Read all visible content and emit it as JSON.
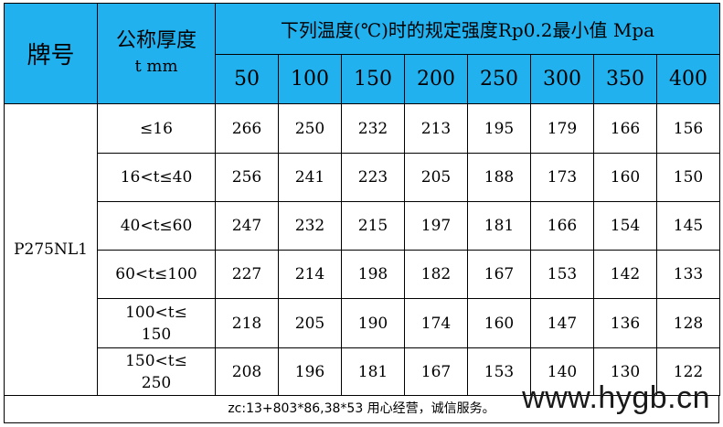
{
  "table": {
    "header": {
      "grade": "牌号",
      "thickness_line1": "公称厚度",
      "thickness_line2": "t mm",
      "title": "下列温度(℃)时的规定强度Rp0.2最小值 Mpa",
      "temps": [
        "50",
        "100",
        "150",
        "200",
        "250",
        "300",
        "350",
        "400"
      ]
    },
    "grade_value": "P275NL1",
    "rows": [
      {
        "range_line1": "≤16",
        "range_line2": "",
        "values": [
          "266",
          "250",
          "232",
          "213",
          "195",
          "179",
          "166",
          "156"
        ]
      },
      {
        "range_line1": "16<t≤40",
        "range_line2": "",
        "values": [
          "256",
          "241",
          "223",
          "205",
          "188",
          "173",
          "160",
          "150"
        ]
      },
      {
        "range_line1": "40<t≤60",
        "range_line2": "",
        "values": [
          "247",
          "232",
          "215",
          "197",
          "181",
          "166",
          "154",
          "145"
        ]
      },
      {
        "range_line1": "60<t≤100",
        "range_line2": "",
        "values": [
          "227",
          "214",
          "198",
          "182",
          "167",
          "153",
          "142",
          "133"
        ]
      },
      {
        "range_line1": "100<t≤",
        "range_line2": "150",
        "values": [
          "218",
          "205",
          "190",
          "174",
          "160",
          "147",
          "136",
          "128"
        ]
      },
      {
        "range_line1": "150<t≤",
        "range_line2": "250",
        "values": [
          "208",
          "196",
          "181",
          "167",
          "153",
          "140",
          "130",
          "122"
        ]
      }
    ]
  },
  "footer_text": "zc:13+803*86,38*53 用心经营，诚信服务。",
  "watermark": "www.hygb.cn",
  "colors": {
    "header_bg": "#21b1ef",
    "border": "#000000",
    "background": "#ffffff"
  }
}
